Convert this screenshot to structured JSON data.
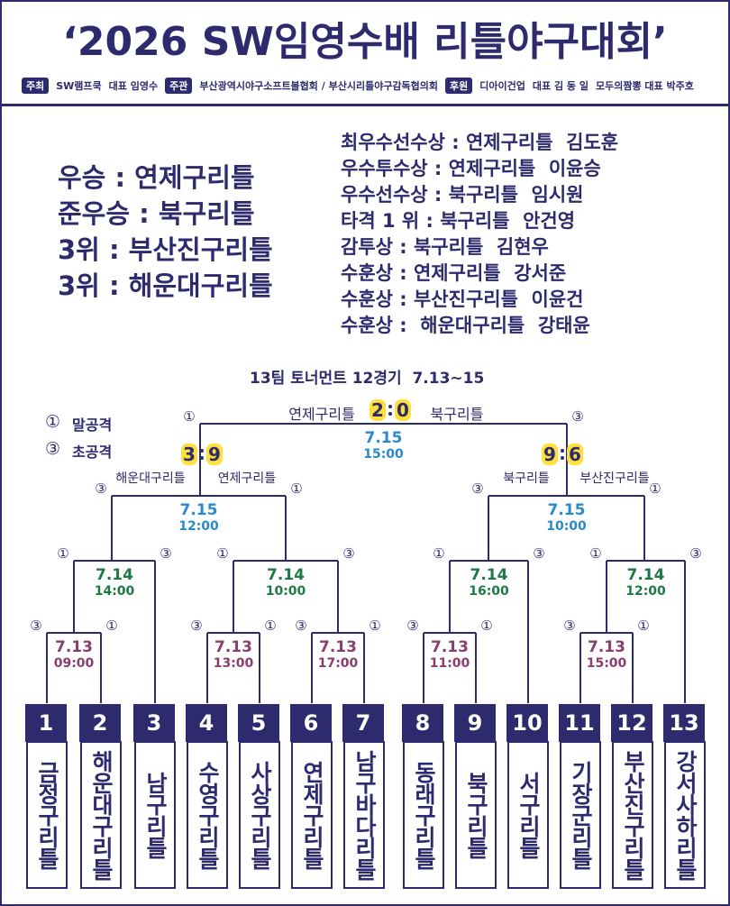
{
  "header": {
    "title": "‘2026 SW임영수배 리틀야구대회’",
    "sponsors": [
      {
        "role": "주최",
        "name": "SW램프쿡",
        "rep": "대표 임영수"
      },
      {
        "role": "주관",
        "name": "부산광역시야구소프트볼협회 / 부산시리틀야구감독협의회"
      },
      {
        "role": "후원",
        "name": "디아이건업",
        "rep": "대표 김 동 일"
      },
      {
        "name": "모두의짬뽕 대표 박주호"
      }
    ]
  },
  "results": [
    "우승 : 연제구리틀",
    "준우승 : 북구리틀",
    "3위 : 부산진구리틀",
    "3위 : 해운대구리틀"
  ],
  "awards": [
    "최우수선수상 : 연제구리틀  김도훈",
    "우수투수상 : 연제구리틀  이윤승",
    "우수선수상 : 북구리틀  임시원",
    "타격 1 위 : 북구리틀  안건영",
    "감투상 : 북구리틀  김현우",
    "수훈상 : 연제구리틀  강서준",
    "수훈상 : 부산진구리틀  이윤건",
    "수훈상 :  해운대구리틀  강태윤"
  ],
  "bracket": {
    "title": "13팀 토너먼트 12경기  7.13~15",
    "legend": [
      {
        "mark": "①",
        "text": "말공격"
      },
      {
        "mark": "③",
        "text": "초공격"
      }
    ],
    "teams": [
      {
        "number": 1,
        "name": "금정구리틀"
      },
      {
        "number": 2,
        "name": "해운대구리틀"
      },
      {
        "number": 3,
        "name": "남구리틀"
      },
      {
        "number": 4,
        "name": "수영구리틀"
      },
      {
        "number": 5,
        "name": "사상구리틀"
      },
      {
        "number": 6,
        "name": "연제구리틀"
      },
      {
        "number": 7,
        "name": "남구바다리틀"
      },
      {
        "number": 8,
        "name": "동래구리틀"
      },
      {
        "number": 9,
        "name": "북구리틀"
      },
      {
        "number": 10,
        "name": "서구리틀"
      },
      {
        "number": 11,
        "name": "기장군리틀"
      },
      {
        "number": 12,
        "name": "부산진구리틀"
      },
      {
        "number": 13,
        "name": "강서사하리틀"
      }
    ],
    "games": [
      {
        "date": "7.13",
        "time": "09:00",
        "marks": [
          "③",
          "①"
        ]
      },
      {
        "date": "7.13",
        "time": "13:00",
        "marks": [
          "③",
          "①"
        ]
      },
      {
        "date": "7.13",
        "time": "17:00",
        "marks": [
          "③",
          "①"
        ]
      },
      {
        "date": "7.13",
        "time": "11:00",
        "marks": [
          "③",
          "①"
        ]
      },
      {
        "date": "7.13",
        "time": "15:00",
        "marks": [
          "③",
          "①"
        ]
      },
      {
        "date": "7.14",
        "time": "14:00",
        "marks": [
          "①",
          "③"
        ]
      },
      {
        "date": "7.14",
        "time": "10:00",
        "marks": [
          "①",
          "③"
        ]
      },
      {
        "date": "7.14",
        "time": "16:00",
        "marks": [
          "①",
          "③"
        ]
      },
      {
        "date": "7.14",
        "time": "12:00",
        "marks": [
          "①",
          "③"
        ]
      },
      {
        "date": "7.15",
        "time": "12:00",
        "marks": [
          "③",
          "①"
        ],
        "teams": [
          "해운대구리틀",
          "연제구리틀"
        ],
        "score": [
          3,
          9
        ]
      },
      {
        "date": "7.15",
        "time": "10:00",
        "marks": [
          "③",
          "①"
        ],
        "teams": [
          "북구리틀",
          "부산진구리틀"
        ],
        "score": [
          9,
          6
        ]
      },
      {
        "date": "7.15",
        "time": "15:00",
        "marks": [
          "①",
          "③"
        ],
        "teams": [
          "연제구리틀",
          "북구리틀"
        ],
        "score": [
          2,
          0
        ]
      }
    ]
  }
}
